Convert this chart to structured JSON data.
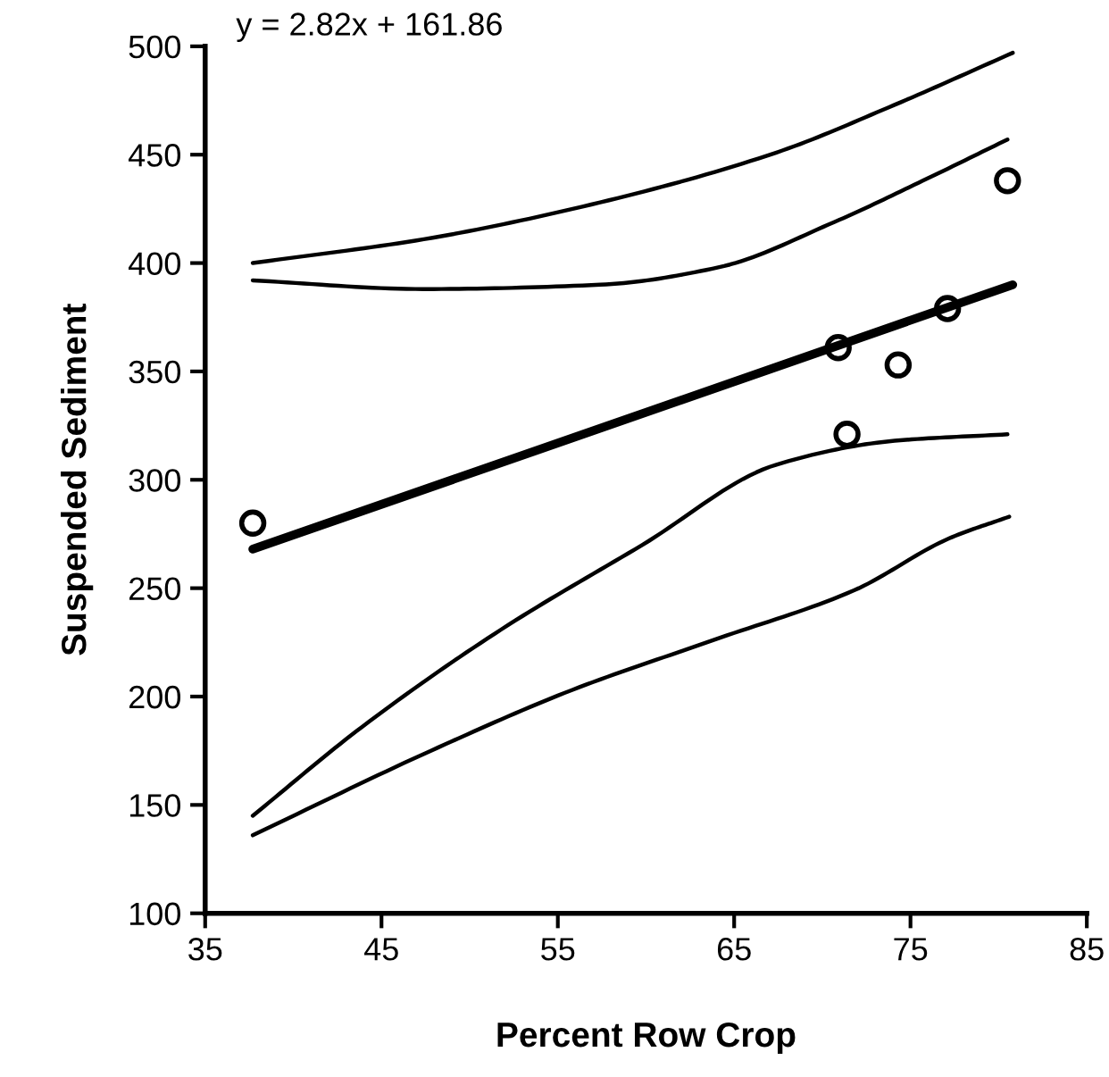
{
  "chart_data": {
    "type": "scatter",
    "xlabel": "Percent Row Crop",
    "ylabel": "Suspended Sediment",
    "xlim": [
      35,
      85
    ],
    "xticks": [
      35,
      45,
      55,
      65,
      75,
      85
    ],
    "ylim": [
      100,
      500
    ],
    "yticks": [
      100,
      150,
      200,
      250,
      300,
      350,
      400,
      450,
      500
    ],
    "annotations": [
      "y = 2.82x + 161.86"
    ],
    "grid": false,
    "legend": false,
    "series": [
      {
        "color": "#000000",
        "marker": "circle",
        "x": [
          37.7,
          70.9,
          71.4,
          74.3,
          77.1,
          80.5
        ],
        "values": [
          280,
          361,
          321,
          353,
          379,
          438
        ]
      },
      {
        "type": "line",
        "color": "#000000",
        "marker": "none",
        "x": [
          37.7,
          80.8
        ],
        "values": [
          268,
          390
        ]
      },
      {
        "type": "line",
        "color": "#000000",
        "marker": "none",
        "x": [
          37.7,
          47.4,
          57.4,
          67.4,
          74.1,
          80.8
        ],
        "values": [
          400,
          411,
          428,
          451,
          473,
          497
        ]
      },
      {
        "type": "line",
        "color": "#000000",
        "marker": "none",
        "x": [
          37.7,
          47.4,
          57.4,
          64.1,
          70.7,
          75.7,
          80.5
        ],
        "values": [
          392,
          388,
          390,
          398,
          419,
          438,
          457
        ]
      },
      {
        "type": "line",
        "color": "#000000",
        "marker": "none",
        "x": [
          37.7,
          43.9,
          51.8,
          59.8,
          67.4,
          74.1,
          80.5
        ],
        "values": [
          145,
          186,
          231,
          270,
          307,
          318,
          321
        ]
      },
      {
        "type": "line",
        "color": "#000000",
        "marker": "none",
        "x": [
          37.7,
          47.8,
          55.8,
          63.8,
          71.8,
          77.2,
          80.6
        ],
        "values": [
          136,
          175,
          203,
          226,
          249,
          273,
          283
        ]
      }
    ]
  }
}
